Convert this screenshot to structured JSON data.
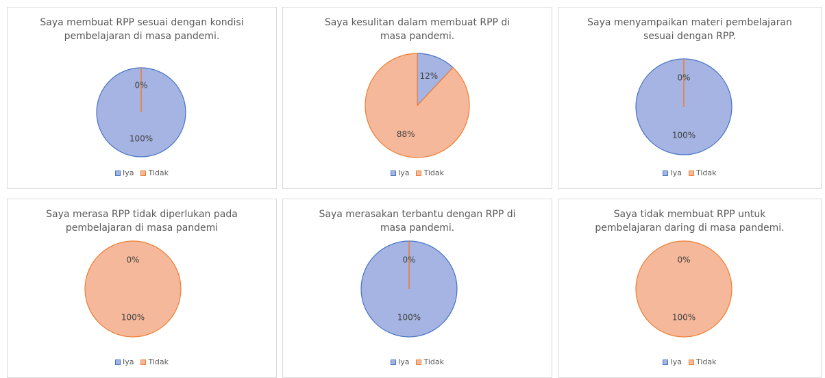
{
  "chart_data": [
    {
      "type": "pie",
      "title": "Saya membuat RPP sesuai dengan kondisi pembelajaran di masa pandemi.",
      "categories": [
        "Iya",
        "Tidak"
      ],
      "values": [
        100,
        0
      ],
      "value_labels": [
        "100%",
        "0%"
      ],
      "colors": [
        "#a5b4e2",
        "#f5b89a"
      ],
      "edge_colors": [
        "#4472c4",
        "#ed7d31"
      ]
    },
    {
      "type": "pie",
      "title": "Saya kesulitan dalam membuat RPP di masa pandemi.",
      "categories": [
        "Iya",
        "Tidak"
      ],
      "values": [
        12,
        88
      ],
      "value_labels": [
        "12%",
        "88%"
      ],
      "colors": [
        "#a5b4e2",
        "#f5b89a"
      ],
      "edge_colors": [
        "#4472c4",
        "#ed7d31"
      ]
    },
    {
      "type": "pie",
      "title": "Saya menyampaikan materi pembelajaran sesuai dengan RPP.",
      "categories": [
        "Iya",
        "Tidak"
      ],
      "values": [
        100,
        0
      ],
      "value_labels": [
        "100%",
        "0%"
      ],
      "colors": [
        "#a5b4e2",
        "#f5b89a"
      ],
      "edge_colors": [
        "#4472c4",
        "#ed7d31"
      ]
    },
    {
      "type": "pie",
      "title": "Saya merasa RPP tidak diperlukan pada pembelajaran di masa pandemi",
      "categories": [
        "Iya",
        "Tidak"
      ],
      "values": [
        0,
        100
      ],
      "value_labels": [
        "0%",
        "100%"
      ],
      "colors": [
        "#a5b4e2",
        "#f5b89a"
      ],
      "edge_colors": [
        "#4472c4",
        "#ed7d31"
      ]
    },
    {
      "type": "pie",
      "title": "Saya merasakan terbantu dengan RPP di masa pandemi.",
      "categories": [
        "Iya",
        "Tidak"
      ],
      "values": [
        100,
        0
      ],
      "value_labels": [
        "100%",
        "0%"
      ],
      "colors": [
        "#a5b4e2",
        "#f5b89a"
      ],
      "edge_colors": [
        "#4472c4",
        "#ed7d31"
      ]
    },
    {
      "type": "pie",
      "title": "Saya tidak membuat RPP untuk pembelajaran daring di masa pandemi.",
      "categories": [
        "Iya",
        "Tidak"
      ],
      "values": [
        0,
        100
      ],
      "value_labels": [
        "0%",
        "100%"
      ],
      "colors": [
        "#a5b4e2",
        "#f5b89a"
      ],
      "edge_colors": [
        "#4472c4",
        "#ed7d31"
      ]
    }
  ]
}
